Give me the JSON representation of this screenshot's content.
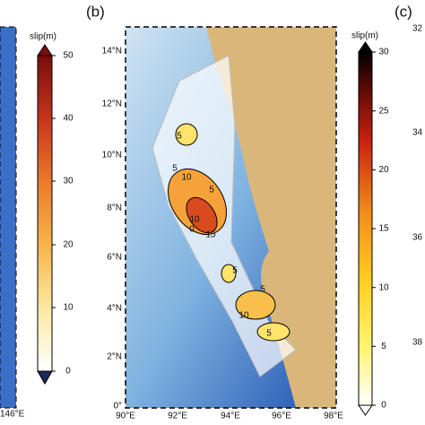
{
  "left_panel": {
    "colorbar": {
      "title": "slip(m)",
      "ticks": [
        "50",
        "40",
        "30",
        "20",
        "10",
        "0"
      ]
    },
    "lon_label": "146°E"
  },
  "panel_b": {
    "label": "(b)",
    "lat_labels": [
      "14°N",
      "12°N",
      "10°N",
      "8°N",
      "6°N",
      "4°N",
      "2°N",
      "0°"
    ],
    "lon_labels": [
      "90°E",
      "92°E",
      "94°E",
      "96°E",
      "98°E"
    ],
    "contour_labels": [
      "5",
      "5",
      "10",
      "5",
      "10",
      "15",
      "0",
      "5",
      "5",
      "10",
      "5"
    ],
    "colorbar": {
      "title": "slip(m)",
      "ticks": [
        "30",
        "25",
        "20",
        "15",
        "10",
        "5",
        "0"
      ]
    }
  },
  "panel_c": {
    "label": "(c)",
    "axis_labels": [
      "32",
      "34",
      "36",
      "38"
    ]
  }
}
